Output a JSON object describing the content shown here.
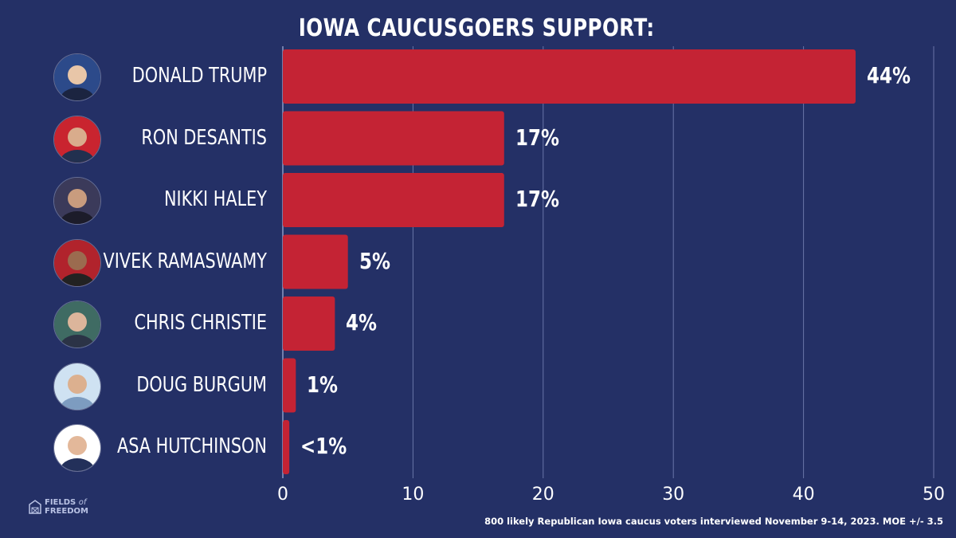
{
  "chart_data": {
    "type": "bar",
    "orientation": "horizontal",
    "title": "IOWA CAUCUSGOERS SUPPORT:",
    "categories": [
      "DONALD TRUMP",
      "RON DESANTIS",
      "NIKKI HALEY",
      "VIVEK RAMASWAMY",
      "CHRIS CHRISTIE",
      "DOUG BURGUM",
      "ASA HUTCHINSON"
    ],
    "values": [
      44,
      17,
      17,
      5,
      4,
      1,
      0.5
    ],
    "value_labels": [
      "44%",
      "17%",
      "17%",
      "5%",
      "4%",
      "1%",
      "<1%"
    ],
    "xlim": [
      0,
      50
    ],
    "x_ticks": [
      0,
      10,
      20,
      30,
      40,
      50
    ],
    "grid": "vertical",
    "bar_color": "#c42334",
    "background_color": "#243066"
  },
  "footnote": "800 likely Republican Iowa caucus voters interviewed November 9-14, 2023. MOE +/- 3.5",
  "logo": {
    "line1": "FIELDS",
    "of": "of",
    "line2": "FREEDOM"
  }
}
